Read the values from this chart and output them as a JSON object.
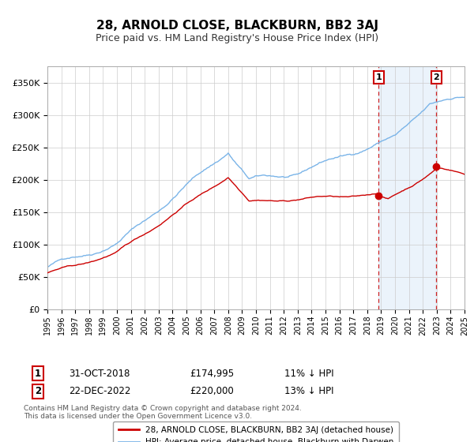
{
  "title": "28, ARNOLD CLOSE, BLACKBURN, BB2 3AJ",
  "subtitle": "Price paid vs. HM Land Registry's House Price Index (HPI)",
  "ylabel_ticks": [
    "£0",
    "£50K",
    "£100K",
    "£150K",
    "£200K",
    "£250K",
    "£300K",
    "£350K"
  ],
  "ylabel_values": [
    0,
    50000,
    100000,
    150000,
    200000,
    250000,
    300000,
    350000
  ],
  "ylim": [
    0,
    375000
  ],
  "x_start_year": 1995,
  "x_end_year": 2025,
  "hpi_color": "#7ab4e8",
  "price_color": "#cc0000",
  "dashed_line_color": "#cc0000",
  "marker1_year": 2018.83,
  "marker2_year": 2022.97,
  "marker1_price": 174995,
  "marker2_price": 220000,
  "annotation1": [
    "1",
    "31-OCT-2018",
    "£174,995",
    "11% ↓ HPI"
  ],
  "annotation2": [
    "2",
    "22-DEC-2022",
    "£220,000",
    "13% ↓ HPI"
  ],
  "legend_label1": "28, ARNOLD CLOSE, BLACKBURN, BB2 3AJ (detached house)",
  "legend_label2": "HPI: Average price, detached house, Blackburn with Darwen",
  "footer": "Contains HM Land Registry data © Crown copyright and database right 2024.\nThis data is licensed under the Open Government Licence v3.0.",
  "background_color": "#ffffff",
  "grid_color": "#cccccc"
}
